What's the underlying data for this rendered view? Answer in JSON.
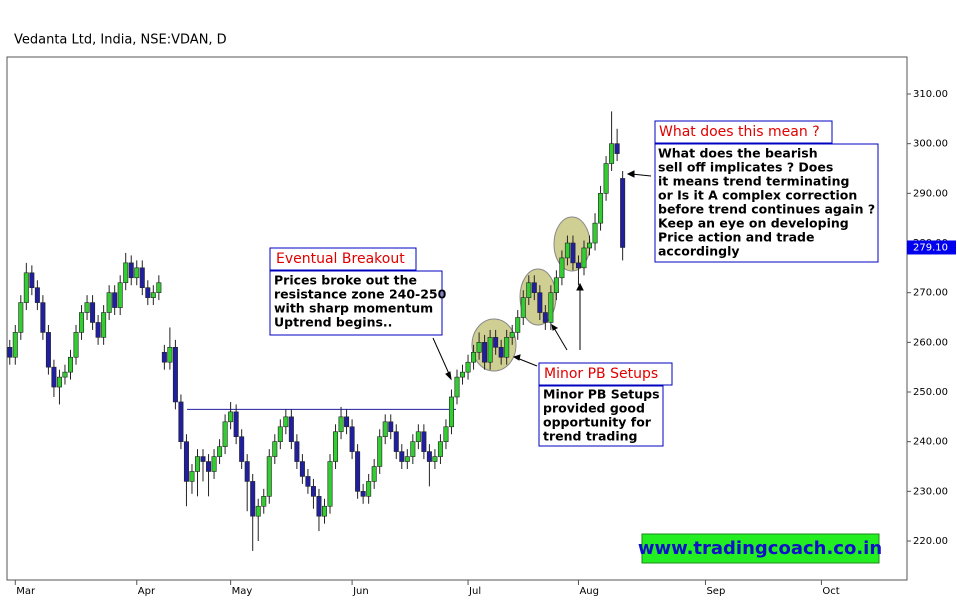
{
  "chart_data": {
    "type": "candlestick",
    "title": "Vedanta Ltd, India, NSE:VDAN, D",
    "categories": [
      null,
      "Mar",
      null,
      null,
      null,
      null,
      null,
      null,
      null,
      null,
      null,
      null,
      null,
      null,
      null,
      null,
      null,
      null,
      null,
      null,
      null,
      null,
      null,
      "Apr",
      null,
      null,
      null,
      null,
      null,
      null,
      null,
      null,
      null,
      null,
      null,
      null,
      null,
      null,
      null,
      null,
      "May",
      null,
      null,
      null,
      null,
      null,
      null,
      null,
      null,
      null,
      null,
      null,
      null,
      null,
      null,
      null,
      null,
      null,
      null,
      null,
      null,
      null,
      "Jun",
      null,
      null,
      null,
      null,
      null,
      null,
      null,
      null,
      null,
      null,
      null,
      null,
      null,
      null,
      null,
      null,
      null,
      null,
      null,
      null,
      "Jul",
      null,
      null,
      null,
      null,
      null,
      null,
      null,
      null,
      null,
      null,
      null,
      null,
      null,
      null,
      null,
      null,
      null,
      null,
      null,
      "Aug",
      null,
      null,
      null,
      null,
      null,
      null,
      null,
      null,
      null,
      null,
      null,
      null,
      null,
      null,
      null,
      null,
      null,
      null,
      null,
      null,
      null,
      null,
      "Sep",
      null,
      null,
      null,
      null,
      null,
      null,
      null,
      null,
      null,
      null,
      null,
      null,
      null,
      null,
      null,
      null,
      null,
      null,
      null,
      null,
      "Oct",
      null,
      null,
      null,
      null,
      null,
      null,
      null,
      null,
      null,
      null,
      null,
      null,
      null,
      null,
      null
    ],
    "open": [
      259,
      257,
      262,
      268,
      274,
      271,
      268,
      262,
      255,
      251,
      253,
      254,
      257,
      262,
      266,
      268,
      264,
      261,
      266,
      270,
      267,
      272,
      276,
      273,
      275,
      271,
      269,
      270,
      258,
      256,
      259,
      248,
      240,
      232,
      234,
      237,
      236,
      234,
      237,
      239,
      244,
      246,
      241,
      236,
      232,
      225,
      227,
      229,
      237,
      240,
      243,
      245,
      240,
      236,
      233,
      231,
      229,
      225,
      227,
      236,
      242,
      245,
      243,
      238,
      230,
      229,
      232,
      235,
      241,
      244,
      242,
      238,
      236,
      237,
      240,
      242,
      238,
      236,
      237,
      240,
      243,
      249,
      253,
      254,
      256,
      258,
      260,
      256,
      261,
      259,
      257,
      261,
      262,
      265,
      269,
      272,
      270,
      266,
      264,
      270,
      273,
      277,
      280,
      276,
      275,
      279,
      280,
      284,
      290,
      296,
      300,
      293,
      null,
      null,
      null,
      null,
      null,
      null,
      null,
      null,
      null,
      null,
      null,
      null,
      null,
      null,
      null,
      null,
      null,
      null,
      null,
      null,
      null,
      null,
      null,
      null,
      null,
      null,
      null,
      null,
      null,
      null,
      null,
      null,
      null,
      null,
      null,
      null,
      null,
      null,
      null,
      null,
      null,
      null,
      null,
      null,
      null,
      null,
      null,
      null,
      null,
      null,
      null
    ],
    "high": [
      260.5,
      263.5,
      269.5,
      276,
      275.5,
      272.5,
      269.5,
      263.5,
      256.5,
      254.5,
      255.5,
      258.5,
      263.5,
      267.5,
      269.5,
      269.5,
      265.5,
      267.5,
      271.5,
      271.5,
      273.5,
      278,
      277.5,
      276.5,
      276.5,
      272.5,
      271.5,
      273.5,
      259.5,
      263,
      260.5,
      249.5,
      241.5,
      235.5,
      238.5,
      238.5,
      237.5,
      238.5,
      240.5,
      245.5,
      248,
      247.5,
      242.5,
      237.5,
      233.5,
      228.5,
      230.5,
      238.5,
      241.5,
      244.5,
      246.5,
      246.5,
      241.5,
      237.5,
      234.5,
      232.5,
      230.5,
      228.5,
      237.5,
      243.5,
      247,
      246.5,
      244.5,
      239.5,
      231.5,
      233.5,
      236.5,
      242.5,
      245.5,
      245.5,
      243.5,
      239.5,
      238.5,
      241.5,
      243.5,
      243.5,
      239.5,
      238.5,
      241.5,
      244.5,
      250.5,
      254.5,
      255.5,
      257.5,
      259.5,
      262,
      261.5,
      262.5,
      262.5,
      260.5,
      262.5,
      263.5,
      266.5,
      270.5,
      273.5,
      273.5,
      271.5,
      267.5,
      271.5,
      274.5,
      278.5,
      281.5,
      281.5,
      277.5,
      280.5,
      281.5,
      286,
      291.5,
      297.5,
      306.5,
      303,
      294.5,
      null,
      null,
      null,
      null,
      null,
      null,
      null,
      null,
      null,
      null,
      null,
      null,
      null,
      null,
      null,
      null,
      null,
      null,
      null,
      null,
      null,
      null,
      null,
      null,
      null,
      null,
      null,
      null,
      null,
      null,
      null,
      null,
      null,
      null,
      null,
      null,
      null,
      null,
      null,
      null,
      null,
      null,
      null,
      null,
      null,
      null,
      null,
      null,
      null,
      null,
      null
    ],
    "low": [
      255.5,
      255.5,
      260.5,
      266.5,
      269.5,
      266.5,
      260.5,
      253.5,
      249,
      247.5,
      251.5,
      252.5,
      255.5,
      260.5,
      264.5,
      262.5,
      259.5,
      259.5,
      264.5,
      265.5,
      265.5,
      270.5,
      271.5,
      271.5,
      269.5,
      267.5,
      267.5,
      268.5,
      254.5,
      254.5,
      246.5,
      238.5,
      227,
      229.5,
      229,
      232,
      229,
      232.5,
      235.5,
      237.5,
      242.5,
      239.5,
      234.5,
      226,
      218,
      220,
      225.5,
      227.5,
      235.5,
      238.5,
      241.5,
      238.5,
      234.5,
      231.5,
      229.5,
      226.5,
      222,
      223.5,
      225.5,
      234.5,
      240.5,
      241.5,
      236.5,
      228.5,
      227.5,
      227.5,
      230.5,
      233.5,
      239.5,
      240.5,
      236.5,
      234.5,
      234.5,
      235.5,
      238.5,
      236.5,
      231,
      234.5,
      235.5,
      238.5,
      241.5,
      247.5,
      251.5,
      252.5,
      254.5,
      256.5,
      254.5,
      254.5,
      257.5,
      255.5,
      255.5,
      259.5,
      260.5,
      263.5,
      267.5,
      268.5,
      264.5,
      262.5,
      262.5,
      268.5,
      271.5,
      275.5,
      274.5,
      271.5,
      273.5,
      277.5,
      278.5,
      282.5,
      288.5,
      294.5,
      296.5,
      276.5,
      null,
      null,
      null,
      null,
      null,
      null,
      null,
      null,
      null,
      null,
      null,
      null,
      null,
      null,
      null,
      null,
      null,
      null,
      null,
      null,
      null,
      null,
      null,
      null,
      null,
      null,
      null,
      null,
      null,
      null,
      null,
      null,
      null,
      null,
      null,
      null,
      null,
      null,
      null,
      null,
      null,
      null,
      null,
      null,
      null,
      null,
      null,
      null,
      null,
      null,
      null
    ],
    "close": [
      257,
      262,
      268,
      274,
      271,
      268,
      262,
      255,
      251,
      253,
      254,
      257,
      262,
      266,
      268,
      264,
      261,
      266,
      270,
      267,
      272,
      276,
      273,
      275,
      271,
      269,
      270,
      272,
      256,
      259,
      248,
      240,
      232,
      234,
      237,
      236,
      234,
      237,
      239,
      244,
      246,
      241,
      236,
      232,
      225,
      227,
      229,
      237,
      240,
      243,
      245,
      240,
      236,
      233,
      231,
      229,
      225,
      227,
      236,
      242,
      245,
      243,
      238,
      230,
      229,
      232,
      235,
      241,
      244,
      242,
      238,
      236,
      237,
      240,
      242,
      238,
      236,
      237,
      240,
      243,
      249,
      253,
      254,
      256,
      258,
      260,
      256,
      261,
      259,
      257,
      261,
      262,
      265,
      269,
      272,
      270,
      266,
      264,
      270,
      273,
      277,
      280,
      276,
      275,
      279,
      280,
      284,
      290,
      296,
      300,
      298,
      279.1,
      null,
      null,
      null,
      null,
      null,
      null,
      null,
      null,
      null,
      null,
      null,
      null,
      null,
      null,
      null,
      null,
      null,
      null,
      null,
      null,
      null,
      null,
      null,
      null,
      null,
      null,
      null,
      null,
      null,
      null,
      null,
      null,
      null,
      null,
      null,
      null,
      null,
      null,
      null,
      null,
      null,
      null,
      null,
      null,
      null,
      null,
      null,
      null,
      null,
      null,
      null
    ],
    "up_color": "#33cc33",
    "down_color": "#1f1fa0",
    "ylim": [
      212.15,
      317.45
    ],
    "yticks": [
      {
        "value": 220,
        "label": "220.00"
      },
      {
        "value": 230,
        "label": "230.00"
      },
      {
        "value": 240,
        "label": "240.00"
      },
      {
        "value": 250,
        "label": "250.00"
      },
      {
        "value": 260,
        "label": "260.00"
      },
      {
        "value": 270,
        "label": "270.00"
      },
      {
        "value": 280,
        "label": "280.00"
      },
      {
        "value": 290,
        "label": "290.00"
      },
      {
        "value": 300,
        "label": "300.00"
      },
      {
        "value": 310,
        "label": "310.00"
      }
    ],
    "last_price": {
      "value": 279.1,
      "label": "279.10"
    },
    "resistance_line": {
      "value": 246.5
    },
    "annotations": {
      "breakout": {
        "title": "Eventual Breakout",
        "lines": [
          "Prices broke out the",
          "resistance zone 240-250",
          "with sharp momentum",
          "Uptrend begins.."
        ]
      },
      "pullback": {
        "title": "Minor PB Setups",
        "lines": [
          "Minor PB Setups",
          "provided good",
          "opportunity for",
          "trend trading"
        ]
      },
      "question": {
        "title": "What does this mean ?",
        "lines": [
          "What does the bearish",
          "sell off implicates ? Does",
          "it means trend terminating",
          " or Is it A complex correction",
          "before trend continues again ?",
          "Keep an eye on developing",
          "Price action and trade",
          "accordingly"
        ]
      },
      "website": "www.tradingcoach.co.in"
    }
  }
}
